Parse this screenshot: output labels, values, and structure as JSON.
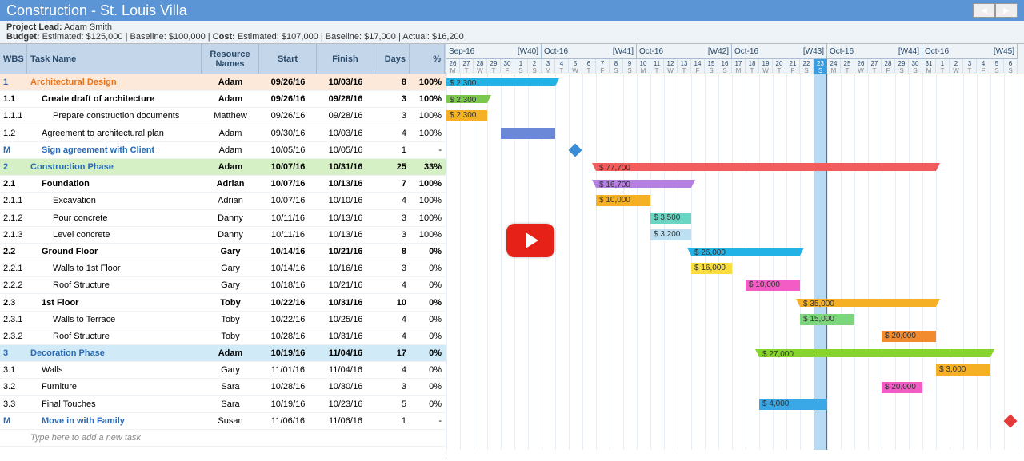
{
  "title": "Construction - St. Louis Villa",
  "projectLead": {
    "label": "Project Lead:",
    "value": "Adam Smith"
  },
  "budget": {
    "label": "Budget:",
    "est_l": "Estimated:",
    "est": "$125,000",
    "base_l": "Baseline:",
    "base": "$100,000"
  },
  "cost": {
    "label": "Cost:",
    "est_l": "Estimated:",
    "est": "$107,000",
    "base_l": "Baseline:",
    "base": "$17,000",
    "act_l": "Actual:",
    "act": "$16,200"
  },
  "cols": {
    "wbs": "WBS",
    "name": "Task Name",
    "res": "Resource Names",
    "start": "Start",
    "finish": "Finish",
    "days": "Days",
    "pct": "%"
  },
  "newtask": "Type here to add a new task",
  "weeks": [
    {
      "m": "Sep-16",
      "w": "[W40]",
      "days": [
        "26",
        "27",
        "28",
        "29",
        "30",
        "1",
        "2"
      ],
      "dl": [
        "M",
        "T",
        "W",
        "T",
        "F",
        "S",
        "S"
      ]
    },
    {
      "m": "Oct-16",
      "w": "[W41]",
      "days": [
        "3",
        "4",
        "5",
        "6",
        "7",
        "8",
        "9"
      ],
      "dl": [
        "M",
        "T",
        "W",
        "T",
        "F",
        "S",
        "S"
      ]
    },
    {
      "m": "Oct-16",
      "w": "[W42]",
      "days": [
        "10",
        "11",
        "12",
        "13",
        "14",
        "15",
        "16"
      ],
      "dl": [
        "M",
        "T",
        "W",
        "T",
        "F",
        "S",
        "S"
      ]
    },
    {
      "m": "Oct-16",
      "w": "[W43]",
      "days": [
        "17",
        "18",
        "19",
        "20",
        "21",
        "22",
        "23"
      ],
      "dl": [
        "M",
        "T",
        "W",
        "T",
        "F",
        "S",
        "S"
      ]
    },
    {
      "m": "Oct-16",
      "w": "[W44]",
      "days": [
        "24",
        "25",
        "26",
        "27",
        "28",
        "29",
        "30"
      ],
      "dl": [
        "M",
        "T",
        "W",
        "T",
        "F",
        "S",
        "S"
      ]
    },
    {
      "m": "Oct-16",
      "w": "[W45]",
      "days": [
        "31",
        "1",
        "2",
        "3",
        "4",
        "5",
        "6"
      ],
      "dl": [
        "M",
        "T",
        "W",
        "T",
        "F",
        "S",
        "S"
      ]
    }
  ],
  "dayWidth": 17,
  "todayCol": 27,
  "rows": [
    {
      "wbs": "1",
      "name": "Architectural Design",
      "res": "Adam",
      "start": "09/26/16",
      "finish": "10/03/16",
      "days": "8",
      "pct": "100%",
      "lvl": 0,
      "cls": "summary l0",
      "bar": {
        "type": "sum",
        "s": 0,
        "e": 7,
        "color": "#22b2e6",
        "cost": "$ 2,300"
      }
    },
    {
      "wbs": "1.1",
      "name": "Create draft of architecture",
      "res": "Adam",
      "start": "09/26/16",
      "finish": "09/28/16",
      "days": "3",
      "pct": "100%",
      "lvl": 1,
      "cls": "summary",
      "bar": {
        "type": "sum",
        "s": 0,
        "e": 2,
        "color": "#7cc84c",
        "cost": "$ 2,300"
      }
    },
    {
      "wbs": "1.1.1",
      "name": "Prepare construction documents",
      "res": "Matthew",
      "start": "09/26/16",
      "finish": "09/28/16",
      "days": "3",
      "pct": "100%",
      "lvl": 2,
      "bar": {
        "type": "task",
        "s": 0,
        "e": 2,
        "color": "#f5b025",
        "cost": "$ 2,300"
      }
    },
    {
      "wbs": "1.2",
      "name": "Agreement to architectural plan",
      "res": "Adam",
      "start": "09/30/16",
      "finish": "10/03/16",
      "days": "4",
      "pct": "100%",
      "lvl": 1,
      "bar": {
        "type": "task",
        "s": 4,
        "e": 7,
        "color": "#6a87d8"
      }
    },
    {
      "wbs": "M",
      "name": "Sign agreement with Client",
      "res": "Adam",
      "start": "10/05/16",
      "finish": "10/05/16",
      "days": "1",
      "pct": "-",
      "lvl": 1,
      "cls": "milestone",
      "bar": {
        "type": "milestone",
        "s": 9,
        "color": "#3a8cd6"
      }
    },
    {
      "wbs": "2",
      "name": "Construction Phase",
      "res": "Adam",
      "start": "10/07/16",
      "finish": "10/31/16",
      "days": "25",
      "pct": "33%",
      "lvl": 0,
      "cls": "summary l0b phase2",
      "bar": {
        "type": "sum",
        "s": 11,
        "e": 35,
        "color": "#f25c5c",
        "cost": "$ 77,700"
      }
    },
    {
      "wbs": "2.1",
      "name": "Foundation",
      "res": "Adrian",
      "start": "10/07/16",
      "finish": "10/13/16",
      "days": "7",
      "pct": "100%",
      "lvl": 1,
      "cls": "summary",
      "bar": {
        "type": "sum",
        "s": 11,
        "e": 17,
        "color": "#b580e2",
        "cost": "$ 16,700"
      }
    },
    {
      "wbs": "2.1.1",
      "name": "Excavation",
      "res": "Adrian",
      "start": "10/07/16",
      "finish": "10/10/16",
      "days": "4",
      "pct": "100%",
      "lvl": 2,
      "bar": {
        "type": "task",
        "s": 11,
        "e": 14,
        "color": "#f5b025",
        "cost": "$ 10,000"
      }
    },
    {
      "wbs": "2.1.2",
      "name": "Pour concrete",
      "res": "Danny",
      "start": "10/11/16",
      "finish": "10/13/16",
      "days": "3",
      "pct": "100%",
      "lvl": 2,
      "bar": {
        "type": "task",
        "s": 15,
        "e": 17,
        "color": "#69d6c4",
        "cost": "$ 3,500"
      }
    },
    {
      "wbs": "2.1.3",
      "name": "Level concrete",
      "res": "Danny",
      "start": "10/11/16",
      "finish": "10/13/16",
      "days": "3",
      "pct": "100%",
      "lvl": 2,
      "bar": {
        "type": "task",
        "s": 15,
        "e": 17,
        "color": "#bcdff2",
        "cost": "$ 3,200"
      }
    },
    {
      "wbs": "2.2",
      "name": "Ground Floor",
      "res": "Gary",
      "start": "10/14/16",
      "finish": "10/21/16",
      "days": "8",
      "pct": "0%",
      "lvl": 1,
      "cls": "summary",
      "bar": {
        "type": "sum",
        "s": 18,
        "e": 25,
        "color": "#22b2e6",
        "cost": "$ 26,000"
      }
    },
    {
      "wbs": "2.2.1",
      "name": "Walls to 1st Floor",
      "res": "Gary",
      "start": "10/14/16",
      "finish": "10/16/16",
      "days": "3",
      "pct": "0%",
      "lvl": 2,
      "bar": {
        "type": "task",
        "s": 18,
        "e": 20,
        "color": "#f8de3f",
        "cost": "$ 16,000"
      }
    },
    {
      "wbs": "2.2.2",
      "name": "Roof Structure",
      "res": "Gary",
      "start": "10/18/16",
      "finish": "10/21/16",
      "days": "4",
      "pct": "0%",
      "lvl": 2,
      "bar": {
        "type": "task",
        "s": 22,
        "e": 25,
        "color": "#f25cc4",
        "cost": "$ 10,000"
      }
    },
    {
      "wbs": "2.3",
      "name": "1st Floor",
      "res": "Toby",
      "start": "10/22/16",
      "finish": "10/31/16",
      "days": "10",
      "pct": "0%",
      "lvl": 1,
      "cls": "summary",
      "bar": {
        "type": "sum",
        "s": 26,
        "e": 35,
        "color": "#f5b025",
        "cost": "$ 35,000"
      }
    },
    {
      "wbs": "2.3.1",
      "name": "Walls to Terrace",
      "res": "Toby",
      "start": "10/22/16",
      "finish": "10/25/16",
      "days": "4",
      "pct": "0%",
      "lvl": 2,
      "bar": {
        "type": "task",
        "s": 26,
        "e": 29,
        "color": "#7cd67c",
        "cost": "$ 15,000"
      }
    },
    {
      "wbs": "2.3.2",
      "name": "Roof Structure",
      "res": "Toby",
      "start": "10/28/16",
      "finish": "10/31/16",
      "days": "4",
      "pct": "0%",
      "lvl": 2,
      "bar": {
        "type": "task",
        "s": 32,
        "e": 35,
        "color": "#f28b2e",
        "cost": "$ 20,000"
      }
    },
    {
      "wbs": "3",
      "name": "Decoration Phase",
      "res": "Adam",
      "start": "10/19/16",
      "finish": "11/04/16",
      "days": "17",
      "pct": "0%",
      "lvl": 0,
      "cls": "summary l0c phase3",
      "bar": {
        "type": "sum",
        "s": 23,
        "e": 39,
        "color": "#88d42e",
        "cost": "$ 27,000"
      }
    },
    {
      "wbs": "3.1",
      "name": "Walls",
      "res": "Gary",
      "start": "11/01/16",
      "finish": "11/04/16",
      "days": "4",
      "pct": "0%",
      "lvl": 1,
      "bar": {
        "type": "task",
        "s": 36,
        "e": 39,
        "color": "#f5b025",
        "cost": "$ 3,000"
      }
    },
    {
      "wbs": "3.2",
      "name": "Furniture",
      "res": "Sara",
      "start": "10/28/16",
      "finish": "10/30/16",
      "days": "3",
      "pct": "0%",
      "lvl": 1,
      "bar": {
        "type": "task",
        "s": 32,
        "e": 34,
        "color": "#f25cc4",
        "cost": "$ 20,000"
      }
    },
    {
      "wbs": "3.3",
      "name": "Final Touches",
      "res": "Sara",
      "start": "10/19/16",
      "finish": "10/23/16",
      "days": "5",
      "pct": "0%",
      "lvl": 1,
      "bar": {
        "type": "task",
        "s": 23,
        "e": 27,
        "color": "#3aa8e6",
        "cost": "$ 4,000"
      }
    },
    {
      "wbs": "M",
      "name": "Move in with Family",
      "res": "Susan",
      "start": "11/06/16",
      "finish": "11/06/16",
      "days": "1",
      "pct": "-",
      "lvl": 1,
      "cls": "milestone",
      "bar": {
        "type": "milestone",
        "s": 41,
        "color": "#e63a3a"
      }
    }
  ],
  "colors": {
    "titlebar": "#5b95d6",
    "headerbg": "#c3d6ea"
  }
}
